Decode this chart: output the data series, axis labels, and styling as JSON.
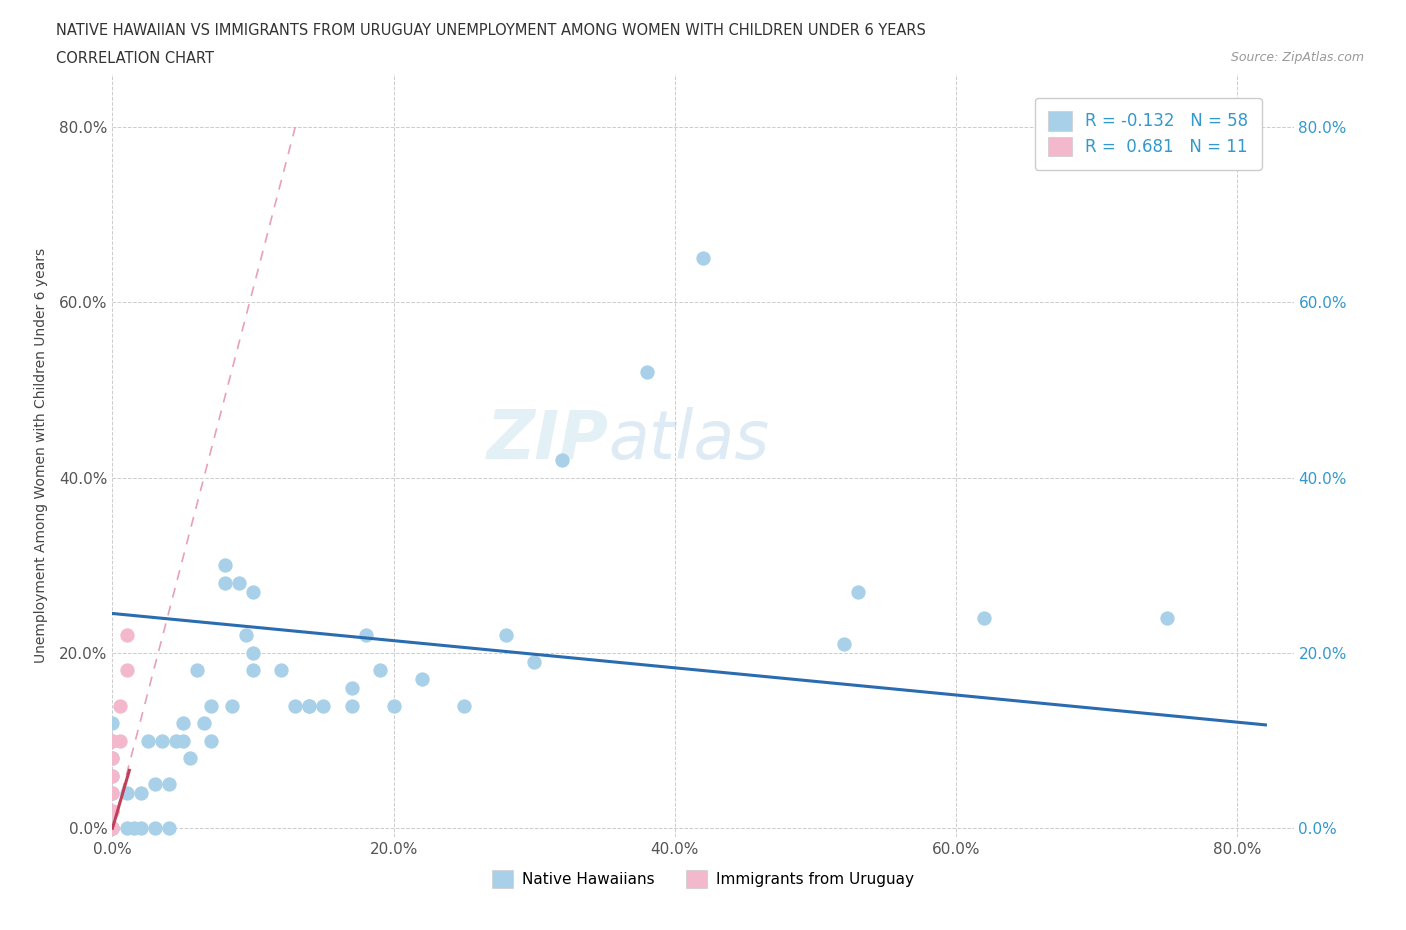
{
  "title_line1": "NATIVE HAWAIIAN VS IMMIGRANTS FROM URUGUAY UNEMPLOYMENT AMONG WOMEN WITH CHILDREN UNDER 6 YEARS",
  "title_line2": "CORRELATION CHART",
  "source_text": "Source: ZipAtlas.com",
  "ylabel": "Unemployment Among Women with Children Under 6 years",
  "xticklabels": [
    "0.0%",
    "20.0%",
    "40.0%",
    "60.0%",
    "80.0%"
  ],
  "yticklabels": [
    "0.0%",
    "20.0%",
    "40.0%",
    "60.0%",
    "80.0%"
  ],
  "xlim": [
    0.0,
    0.84
  ],
  "ylim": [
    -0.01,
    0.86
  ],
  "blue_color": "#a8d0e8",
  "pink_color": "#f4b8cc",
  "trend_blue_color": "#2b6cb0",
  "trend_pink_color": "#c0405a",
  "diag_color": "#e8b0c0",
  "legend_r_blue": "R = -0.132",
  "legend_n_blue": "N = 58",
  "legend_r_pink": "R =  0.681",
  "legend_n_pink": "N = 11",
  "bottom_legend_blue": "Native Hawaiians",
  "bottom_legend_pink": "Immigrants from Uruguay",
  "watermark_zip": "ZIP",
  "watermark_atlas": "atlas",
  "blue_intercept": 0.245,
  "blue_slope": -0.155,
  "pink_intercept": 0.0,
  "pink_slope": 5.5,
  "blue_scatter_x": [
    0.0,
    0.0,
    0.0,
    0.0,
    0.0,
    0.0,
    0.0,
    0.0,
    0.0,
    0.0,
    0.01,
    0.01,
    0.015,
    0.02,
    0.02,
    0.025,
    0.03,
    0.03,
    0.035,
    0.04,
    0.04,
    0.045,
    0.05,
    0.05,
    0.055,
    0.06,
    0.065,
    0.07,
    0.07,
    0.08,
    0.08,
    0.085,
    0.09,
    0.095,
    0.1,
    0.1,
    0.1,
    0.12,
    0.13,
    0.14,
    0.14,
    0.15,
    0.17,
    0.17,
    0.18,
    0.19,
    0.2,
    0.22,
    0.25,
    0.28,
    0.3,
    0.32,
    0.38,
    0.42,
    0.52,
    0.53,
    0.62,
    0.75
  ],
  "blue_scatter_y": [
    0.0,
    0.0,
    0.0,
    0.0,
    0.02,
    0.04,
    0.06,
    0.08,
    0.1,
    0.12,
    0.0,
    0.04,
    0.0,
    0.0,
    0.04,
    0.1,
    0.0,
    0.05,
    0.1,
    0.0,
    0.05,
    0.1,
    0.1,
    0.12,
    0.08,
    0.18,
    0.12,
    0.1,
    0.14,
    0.28,
    0.3,
    0.14,
    0.28,
    0.22,
    0.18,
    0.2,
    0.27,
    0.18,
    0.14,
    0.14,
    0.14,
    0.14,
    0.16,
    0.14,
    0.22,
    0.18,
    0.14,
    0.17,
    0.14,
    0.22,
    0.19,
    0.42,
    0.52,
    0.65,
    0.21,
    0.27,
    0.24,
    0.24
  ],
  "pink_scatter_x": [
    0.0,
    0.0,
    0.0,
    0.0,
    0.0,
    0.0,
    0.0,
    0.005,
    0.005,
    0.01,
    0.01
  ],
  "pink_scatter_y": [
    0.0,
    0.0,
    0.02,
    0.04,
    0.06,
    0.08,
    0.1,
    0.1,
    0.14,
    0.18,
    0.22
  ]
}
